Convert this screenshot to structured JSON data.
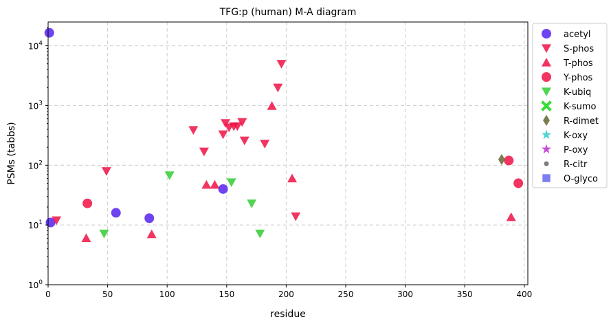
{
  "chart_data": {
    "type": "scatter",
    "title": "TFG:p (human) M-A diagram",
    "xlabel": "residue",
    "ylabel": "PSMs (tabbs)",
    "xlim": [
      0,
      403
    ],
    "ylim": [
      1,
      25000
    ],
    "yscale": "log",
    "grid": true,
    "legend_placement": "outside-right",
    "x_ticks": [
      0,
      50,
      100,
      150,
      200,
      250,
      300,
      350,
      400
    ],
    "y_ticks": [
      {
        "value": 1,
        "base": "10",
        "exp": "0"
      },
      {
        "value": 10,
        "base": "10",
        "exp": "1"
      },
      {
        "value": 100,
        "base": "10",
        "exp": "2"
      },
      {
        "value": 1000,
        "base": "10",
        "exp": "3"
      },
      {
        "value": 10000,
        "base": "10",
        "exp": "4"
      }
    ],
    "series": [
      {
        "name": "acetyl",
        "marker": "circle",
        "color": "#5522ee",
        "points": [
          [
            1,
            16500
          ],
          [
            2,
            11
          ],
          [
            57,
            16
          ],
          [
            85,
            13
          ],
          [
            147,
            40
          ]
        ]
      },
      {
        "name": "S-phos",
        "marker": "triangle-down",
        "color": "#ee1144",
        "points": [
          [
            7,
            12
          ],
          [
            49,
            80
          ],
          [
            122,
            390
          ],
          [
            131,
            170
          ],
          [
            147,
            330
          ],
          [
            149,
            510
          ],
          [
            152,
            430
          ],
          [
            156,
            450
          ],
          [
            159,
            450
          ],
          [
            163,
            530
          ],
          [
            165,
            260
          ],
          [
            182,
            230
          ],
          [
            193,
            2000
          ],
          [
            196,
            5000
          ],
          [
            208,
            14
          ]
        ]
      },
      {
        "name": "T-phos",
        "marker": "triangle-up",
        "color": "#ee1144",
        "points": [
          [
            32,
            6
          ],
          [
            87,
            7
          ],
          [
            133,
            47
          ],
          [
            140,
            47
          ],
          [
            188,
            980
          ],
          [
            205,
            60
          ],
          [
            389,
            13.5
          ]
        ]
      },
      {
        "name": "Y-phos",
        "marker": "circle",
        "color": "#ee1144",
        "points": [
          [
            33,
            23
          ],
          [
            387,
            120
          ],
          [
            395,
            50
          ]
        ]
      },
      {
        "name": "K-ubiq",
        "marker": "triangle-down",
        "color": "#33cc33",
        "points": [
          [
            47,
            7.2
          ],
          [
            102,
            68
          ],
          [
            154,
            52
          ],
          [
            171,
            23
          ],
          [
            178,
            7.2
          ]
        ]
      },
      {
        "name": "K-sumo",
        "marker": "x",
        "color": "#33dd33",
        "points": []
      },
      {
        "name": "R-dimet",
        "marker": "diamond",
        "color": "#666633",
        "points": [
          [
            381,
            125
          ]
        ]
      },
      {
        "name": "K-oxy",
        "marker": "star",
        "color": "#33cccc",
        "points": []
      },
      {
        "name": "P-oxy",
        "marker": "star",
        "color": "#bb33cc",
        "points": []
      },
      {
        "name": "R-citr",
        "marker": "dot",
        "color": "#666666",
        "points": []
      },
      {
        "name": "O-glyco",
        "marker": "square",
        "color": "#6666ee",
        "points": []
      }
    ]
  }
}
